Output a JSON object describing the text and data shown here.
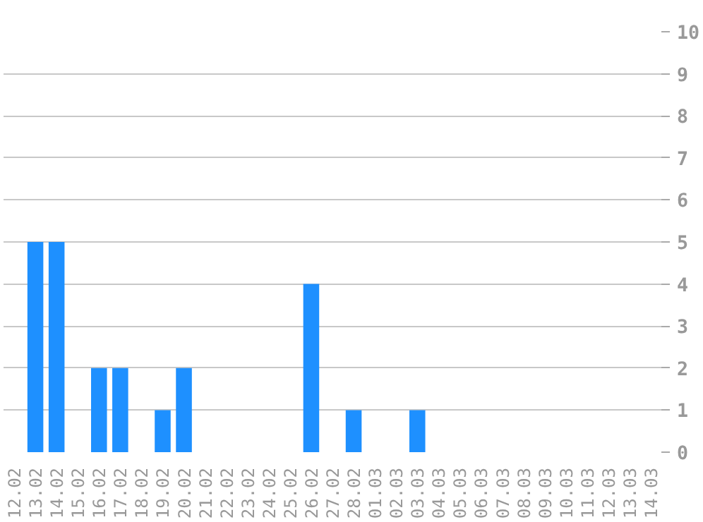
{
  "chart_data": {
    "type": "bar",
    "categories": [
      "12.02",
      "13.02",
      "14.02",
      "15.02",
      "16.02",
      "17.02",
      "18.02",
      "19.02",
      "20.02",
      "21.02",
      "22.02",
      "23.02",
      "24.02",
      "25.02",
      "26.02",
      "27.02",
      "28.02",
      "01.03",
      "02.03",
      "03.03",
      "04.03",
      "05.03",
      "06.03",
      "07.03",
      "08.03",
      "09.03",
      "10.03",
      "11.03",
      "12.03",
      "13.03",
      "14.03"
    ],
    "values": [
      0,
      5,
      5,
      0,
      2,
      2,
      0,
      1,
      2,
      0,
      0,
      0,
      0,
      0,
      4,
      0,
      1,
      0,
      0,
      1,
      0,
      0,
      0,
      0,
      0,
      0,
      0,
      0,
      0,
      0,
      0
    ],
    "color": "#1e90ff",
    "ylim": [
      0,
      10
    ],
    "yticks": [
      0,
      1,
      2,
      3,
      4,
      5,
      6,
      7,
      8,
      9,
      10
    ],
    "grid": "y"
  }
}
